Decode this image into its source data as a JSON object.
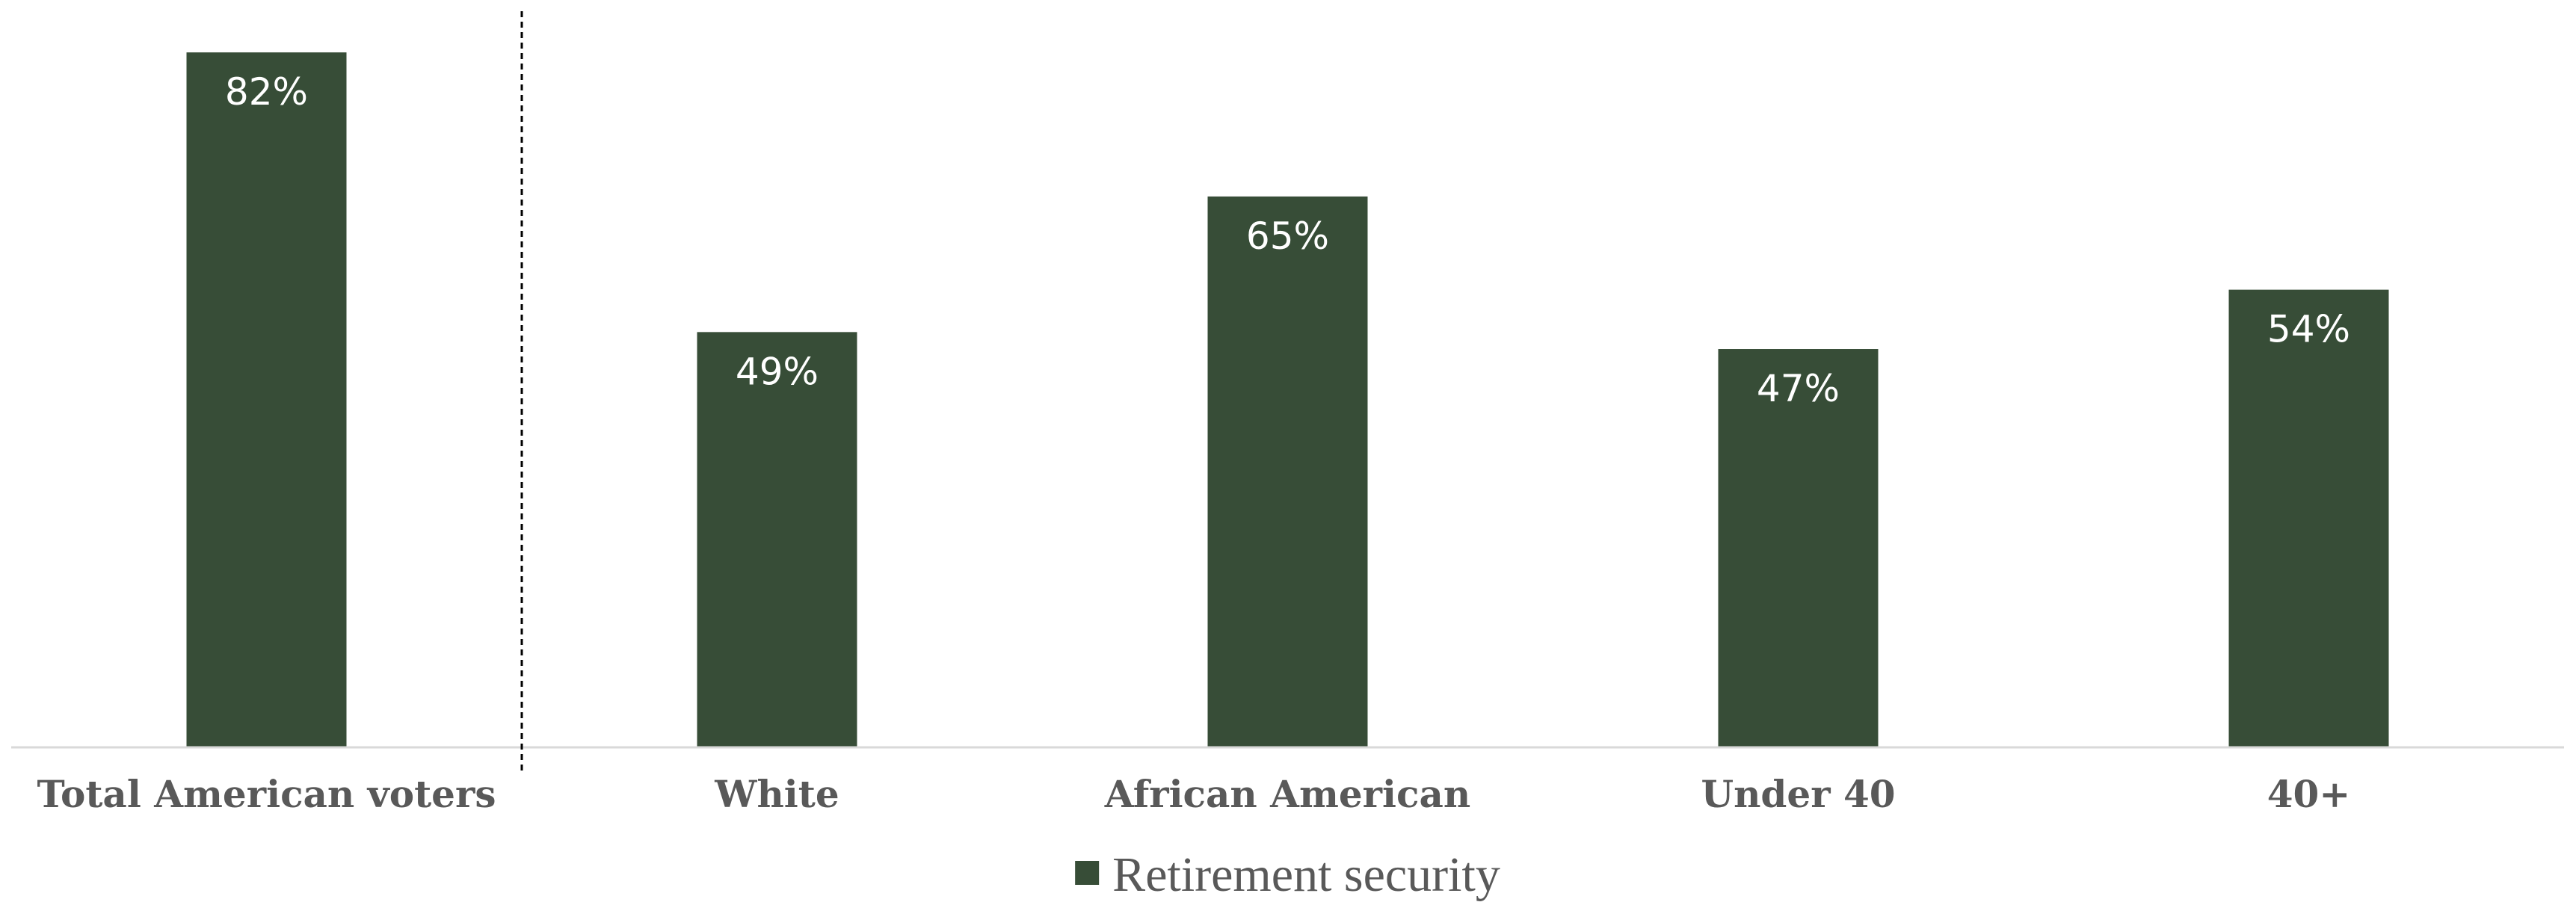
{
  "chart_data": {
    "type": "bar",
    "categories": [
      "Total American voters",
      "White",
      "African American",
      "Under 40",
      "40+"
    ],
    "series": [
      {
        "name": "Retirement security",
        "values": [
          82,
          49,
          65,
          47,
          54
        ],
        "labels": [
          "82%",
          "49%",
          "65%",
          "47%",
          "54%"
        ]
      }
    ],
    "ylim": [
      0,
      87
    ],
    "grid": false,
    "legend_position": "bottom",
    "separator_after_category": 0
  },
  "colors": {
    "bar": "#374d37",
    "bar_label": "#ffffff",
    "category_label": "#595959",
    "axis": "#d9d9d9",
    "separator": "#000000"
  }
}
